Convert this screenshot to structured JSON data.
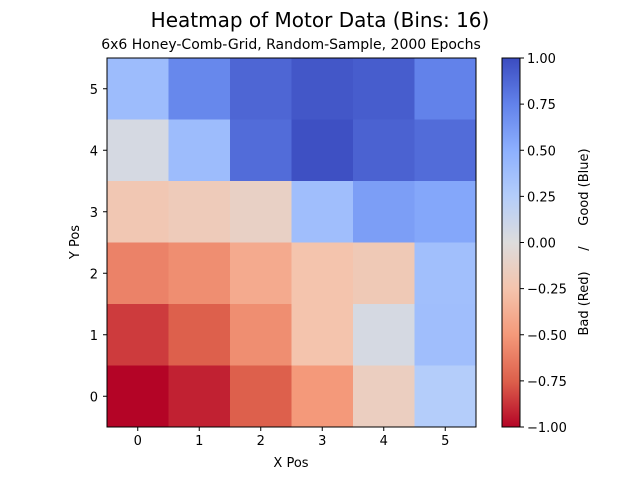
{
  "chart_data": {
    "type": "heatmap",
    "title": "Heatmap of Motor Data (Bins: 16)",
    "subtitle": "6x6 Honey-Comb-Grid, Random-Sample, 2000 Epochs",
    "xlabel": "X Pos",
    "ylabel": "Y Pos",
    "x_ticks": [
      "0",
      "1",
      "2",
      "3",
      "4",
      "5"
    ],
    "y_ticks": [
      "0",
      "1",
      "2",
      "3",
      "4",
      "5"
    ],
    "colormap": "coolwarm",
    "vmin": -1.0,
    "vmax": 1.0,
    "colorbar_label": "Bad (Red)     /     Good (Blue)",
    "colorbar_ticks": [
      "1.00",
      "0.75",
      "0.50",
      "0.25",
      "0.00",
      "−0.25",
      "−0.50",
      "−0.75",
      "−1.00"
    ],
    "colorbar_tick_values": [
      1.0,
      0.75,
      0.5,
      0.25,
      0.0,
      -0.25,
      -0.5,
      -0.75,
      -1.0
    ],
    "rows_from_top": [
      {
        "y": 5,
        "values": [
          0.4,
          0.72,
          0.88,
          0.95,
          0.92,
          0.75
        ]
      },
      {
        "y": 4,
        "values": [
          0.05,
          0.4,
          0.85,
          0.98,
          0.9,
          0.85
        ]
      },
      {
        "y": 3,
        "values": [
          -0.22,
          -0.18,
          -0.12,
          0.38,
          0.6,
          0.55
        ]
      },
      {
        "y": 2,
        "values": [
          -0.6,
          -0.55,
          -0.4,
          -0.25,
          -0.2,
          0.37
        ]
      },
      {
        "y": 1,
        "values": [
          -0.85,
          -0.75,
          -0.55,
          -0.25,
          0.05,
          0.38
        ]
      },
      {
        "y": 0,
        "values": [
          -1.0,
          -0.92,
          -0.75,
          -0.5,
          -0.15,
          0.25
        ]
      }
    ]
  }
}
